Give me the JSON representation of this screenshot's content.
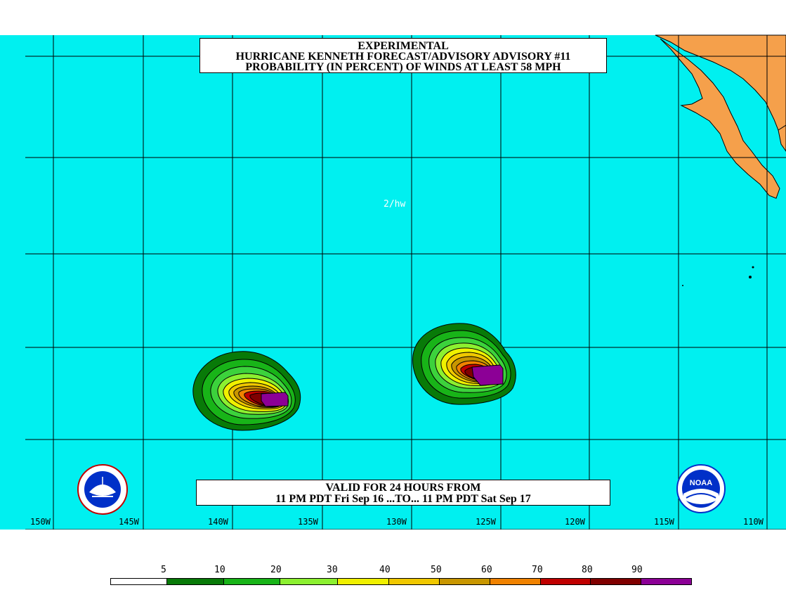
{
  "title": {
    "line1": "EXPERIMENTAL",
    "line2": "HURRICANE KENNETH FORECAST/ADVISORY ADVISORY #11",
    "line3": "PROBABILITY (IN PERCENT) OF WINDS AT LEAST 58 MPH"
  },
  "initials": "2/hw",
  "valid": {
    "line1": "VALID FOR 24 HOURS FROM",
    "line2": "11 PM PDT Fri Sep 16 ...TO... 11 PM PDT Sat Sep 17"
  },
  "longitudes": [
    "150W",
    "145W",
    "140W",
    "135W",
    "130W",
    "125W",
    "120W",
    "115W",
    "110W"
  ],
  "legend": {
    "labels": [
      "5",
      "10",
      "20",
      "30",
      "40",
      "50",
      "60",
      "70",
      "80",
      "90"
    ],
    "colors": [
      "#ffffff",
      "#087a08",
      "#18b418",
      "#3cd23c",
      "#8cf030",
      "#f0f000",
      "#f0c800",
      "#c89600",
      "#f08200",
      "#c00000",
      "#800000",
      "#8c0096"
    ]
  },
  "colors": {
    "ocean": "#00f0f0",
    "land": "#f5a04b"
  },
  "logos": {
    "left": "nws-logo",
    "right": "noaa-logo",
    "noaa_text": "NOAA"
  }
}
